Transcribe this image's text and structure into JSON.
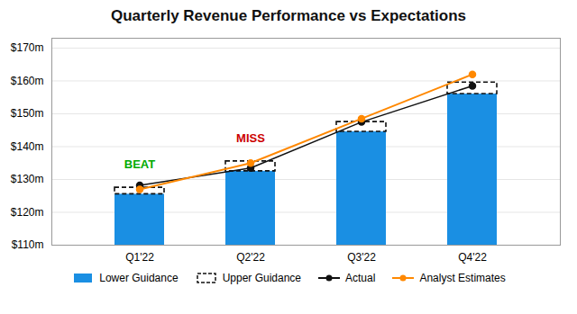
{
  "chart_data": {
    "type": "bar",
    "title": "Quarterly Revenue Performance vs Expectations",
    "categories": [
      "Q1'22",
      "Q2'22",
      "Q3'22",
      "Q4'22"
    ],
    "series": [
      {
        "name": "Lower Guidance",
        "type": "bar",
        "color": "#1a8fe3",
        "values": [
          125.5,
          132.5,
          144.5,
          156.0
        ]
      },
      {
        "name": "Upper Guidance",
        "type": "bar",
        "color": "#111111",
        "line_style": "dashed",
        "values": [
          127.5,
          135.5,
          147.5,
          159.5
        ]
      },
      {
        "name": "Actual",
        "type": "line",
        "color": "#111111",
        "marker": "circle",
        "values": [
          128.2,
          133.5,
          147.5,
          158.5
        ]
      },
      {
        "name": "Analyst Estimates",
        "type": "line",
        "color": "#ff8800",
        "marker": "circle",
        "values": [
          127.0,
          135.0,
          148.5,
          162.0
        ]
      }
    ],
    "annotations": [
      {
        "text": "BEAT",
        "color": "#00aa00",
        "category": "Q1'22",
        "series": "Upper Guidance"
      },
      {
        "text": "MISS",
        "color": "#cc0000",
        "category": "Q2'22",
        "series": "Upper Guidance"
      }
    ],
    "ylim": [
      110,
      173
    ],
    "yticks": [
      {
        "value": 110,
        "label": "$110m"
      },
      {
        "value": 120,
        "label": "$120m"
      },
      {
        "value": 130,
        "label": "$130m"
      },
      {
        "value": 140,
        "label": "$140m"
      },
      {
        "value": 150,
        "label": "$150m"
      },
      {
        "value": 160,
        "label": "$160m"
      },
      {
        "value": 170,
        "label": "$170m"
      }
    ],
    "grid": true,
    "legend": "bottom"
  }
}
